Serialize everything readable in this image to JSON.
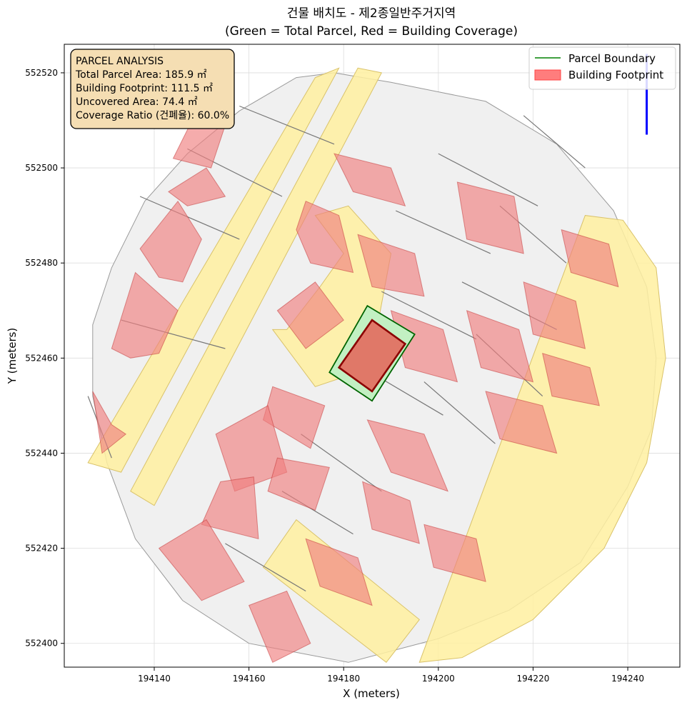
{
  "chart_data": {
    "type": "map",
    "title": "건물 배치도 - 제2종일반주거지역",
    "subtitle": "(Green = Total Parcel, Red = Building Coverage)",
    "xlabel": "X (meters)",
    "ylabel": "Y (meters)",
    "xlim": [
      194121,
      194251
    ],
    "ylim": [
      552395,
      552526
    ],
    "xticks": [
      194140,
      194160,
      194180,
      194200,
      194220,
      194240
    ],
    "yticks": [
      552400,
      552420,
      552440,
      552460,
      552480,
      552500,
      552520
    ],
    "grid": true,
    "legend_placement": "top-right",
    "legend": [
      {
        "label": "Parcel Boundary",
        "kind": "line",
        "color": "#008000"
      },
      {
        "label": "Building Footprint",
        "kind": "patch",
        "color": "#ff6666"
      }
    ],
    "annotation": {
      "title": "PARCEL ANALYSIS",
      "lines": [
        "Total Parcel Area: 185.9 ㎡",
        "Building Footprint: 111.5 ㎡",
        "Uncovered Area: 74.4 ㎡",
        "Coverage Ratio (건폐율): 60.0%"
      ]
    },
    "colors": {
      "area_fill": "#f0f0f0",
      "area_edge": "#9a9a9a",
      "road_fill": "#fff0a0",
      "road_edge": "#d9c26a",
      "building_fill": "#f08080",
      "building_edge": "#c03030",
      "target_parcel_fill": "#c2f0c2",
      "target_parcel_edge": "#006400",
      "target_building_fill": "#e07868",
      "target_building_edge": "#8b0000",
      "north_arrow": "#0000ff",
      "annotation_fill": "#f5deb3"
    },
    "study_area_outline": [
      [
        194170,
        552519
      ],
      [
        194178,
        552520
      ],
      [
        194190,
        552518
      ],
      [
        194210,
        552514
      ],
      [
        194225,
        552505
      ],
      [
        194237,
        552491
      ],
      [
        194244,
        552475
      ],
      [
        194246,
        552460
      ],
      [
        194245,
        552445
      ],
      [
        194240,
        552433
      ],
      [
        194230,
        552417
      ],
      [
        194215,
        552407
      ],
      [
        194200,
        552401
      ],
      [
        194181,
        552396
      ],
      [
        194160,
        552400
      ],
      [
        194146,
        552409
      ],
      [
        194136,
        552422
      ],
      [
        194130,
        552438
      ],
      [
        194127,
        552452
      ],
      [
        194127,
        552467
      ],
      [
        194131,
        552479
      ],
      [
        194138,
        552493
      ],
      [
        194147,
        552503
      ],
      [
        194158,
        552512
      ]
    ],
    "roads": [
      [
        [
          194174,
          552519
        ],
        [
          194179,
          552521
        ],
        [
          194133,
          552436
        ],
        [
          194126,
          552438
        ]
      ],
      [
        [
          194183,
          552521
        ],
        [
          194188,
          552520
        ],
        [
          194140,
          552429
        ],
        [
          194135,
          552432
        ]
      ],
      [
        [
          194165,
          552466
        ],
        [
          194174,
          552454
        ],
        [
          194180,
          552456
        ],
        [
          194187,
          552466
        ],
        [
          194190,
          552482
        ],
        [
          194181,
          552492
        ],
        [
          194174,
          552490
        ],
        [
          194180,
          552482
        ],
        [
          194175,
          552475
        ],
        [
          194168,
          552466
        ]
      ],
      [
        [
          194163,
          552416
        ],
        [
          194170,
          552426
        ],
        [
          194196,
          552405
        ],
        [
          194189,
          552396
        ]
      ],
      [
        [
          194196,
          552396
        ],
        [
          194231,
          552490
        ],
        [
          194239,
          552489
        ],
        [
          194246,
          552479
        ],
        [
          194248,
          552460
        ],
        [
          194244,
          552438
        ],
        [
          194235,
          552420
        ],
        [
          194220,
          552405
        ],
        [
          194205,
          552397
        ]
      ]
    ],
    "parcel_lines": [
      [
        [
          194131,
          552439
        ],
        [
          194126,
          552452
        ]
      ],
      [
        [
          194137,
          552494
        ],
        [
          194158,
          552485
        ]
      ],
      [
        [
          194147,
          552504
        ],
        [
          194167,
          552494
        ]
      ],
      [
        [
          194158,
          552513
        ],
        [
          194178,
          552505
        ]
      ],
      [
        [
          194133,
          552468
        ],
        [
          194155,
          552462
        ]
      ],
      [
        [
          194171,
          552444
        ],
        [
          194188,
          552432
        ]
      ],
      [
        [
          194184,
          552458
        ],
        [
          194201,
          552448
        ]
      ],
      [
        [
          194167,
          552432
        ],
        [
          194182,
          552423
        ]
      ],
      [
        [
          194155,
          552421
        ],
        [
          194172,
          552411
        ]
      ],
      [
        [
          194191,
          552491
        ],
        [
          194211,
          552482
        ]
      ],
      [
        [
          194188,
          552474
        ],
        [
          194208,
          552464
        ]
      ],
      [
        [
          194200,
          552503
        ],
        [
          194221,
          552492
        ]
      ],
      [
        [
          194205,
          552476
        ],
        [
          194225,
          552466
        ]
      ],
      [
        [
          194213,
          552492
        ],
        [
          194227,
          552480
        ]
      ],
      [
        [
          194218,
          552511
        ],
        [
          194231,
          552500
        ]
      ],
      [
        [
          194197,
          552455
        ],
        [
          194212,
          552442
        ]
      ],
      [
        [
          194208,
          552465
        ],
        [
          194222,
          552452
        ]
      ]
    ],
    "buildings": [
      [
        [
          194148,
          552510
        ],
        [
          194156,
          552512
        ],
        [
          194152,
          552500
        ],
        [
          194144,
          552502
        ]
      ],
      [
        [
          194143,
          552495
        ],
        [
          194151,
          552500
        ],
        [
          194155,
          552494
        ],
        [
          194147,
          552492
        ]
      ],
      [
        [
          194137,
          552483
        ],
        [
          194145,
          552493
        ],
        [
          194150,
          552485
        ],
        [
          194146,
          552476
        ],
        [
          194141,
          552477
        ]
      ],
      [
        [
          194131,
          552462
        ],
        [
          194136,
          552478
        ],
        [
          194145,
          552470
        ],
        [
          194141,
          552461
        ],
        [
          194135,
          552460
        ]
      ],
      [
        [
          194127,
          552453
        ],
        [
          194131,
          552446
        ],
        [
          194134,
          552444
        ],
        [
          194129,
          552440
        ]
      ],
      [
        [
          194172,
          552493
        ],
        [
          194179,
          552490
        ],
        [
          194182,
          552478
        ],
        [
          194173,
          552480
        ],
        [
          194170,
          552487
        ]
      ],
      [
        [
          194166,
          552470
        ],
        [
          194174,
          552476
        ],
        [
          194180,
          552468
        ],
        [
          194172,
          552462
        ]
      ],
      [
        [
          194165,
          552454
        ],
        [
          194176,
          552450
        ],
        [
          194173,
          552441
        ],
        [
          194163,
          552447
        ]
      ],
      [
        [
          194153,
          552444
        ],
        [
          194164,
          552450
        ],
        [
          194168,
          552436
        ],
        [
          194157,
          552432
        ]
      ],
      [
        [
          194166,
          552439
        ],
        [
          194177,
          552437
        ],
        [
          194174,
          552428
        ],
        [
          194164,
          552432
        ]
      ],
      [
        [
          194154,
          552434
        ],
        [
          194161,
          552435
        ],
        [
          194162,
          552422
        ],
        [
          194150,
          552425
        ]
      ],
      [
        [
          194141,
          552420
        ],
        [
          194151,
          552426
        ],
        [
          194159,
          552413
        ],
        [
          194150,
          552409
        ]
      ],
      [
        [
          194160,
          552408
        ],
        [
          194168,
          552411
        ],
        [
          194173,
          552400
        ],
        [
          194165,
          552396
        ]
      ],
      [
        [
          194178,
          552503
        ],
        [
          194190,
          552500
        ],
        [
          194193,
          552492
        ],
        [
          194182,
          552495
        ]
      ],
      [
        [
          194183,
          552486
        ],
        [
          194195,
          552482
        ],
        [
          194197,
          552473
        ],
        [
          194186,
          552475
        ]
      ],
      [
        [
          194190,
          552470
        ],
        [
          194201,
          552466
        ],
        [
          194204,
          552455
        ],
        [
          194193,
          552458
        ]
      ],
      [
        [
          194185,
          552447
        ],
        [
          194197,
          552444
        ],
        [
          194202,
          552432
        ],
        [
          194190,
          552436
        ]
      ],
      [
        [
          194184,
          552434
        ],
        [
          194194,
          552430
        ],
        [
          194196,
          552421
        ],
        [
          194186,
          552424
        ]
      ],
      [
        [
          194172,
          552422
        ],
        [
          194183,
          552418
        ],
        [
          194186,
          552408
        ],
        [
          194175,
          552412
        ]
      ],
      [
        [
          194204,
          552497
        ],
        [
          194216,
          552494
        ],
        [
          194218,
          552482
        ],
        [
          194206,
          552485
        ]
      ],
      [
        [
          194206,
          552470
        ],
        [
          194217,
          552466
        ],
        [
          194220,
          552455
        ],
        [
          194209,
          552458
        ]
      ],
      [
        [
          194218,
          552476
        ],
        [
          194229,
          552472
        ],
        [
          194231,
          552462
        ],
        [
          194220,
          552465
        ]
      ],
      [
        [
          194210,
          552453
        ],
        [
          194222,
          552450
        ],
        [
          194225,
          552440
        ],
        [
          194213,
          552443
        ]
      ],
      [
        [
          194226,
          552487
        ],
        [
          194236,
          552484
        ],
        [
          194238,
          552475
        ],
        [
          194228,
          552478
        ]
      ],
      [
        [
          194222,
          552461
        ],
        [
          194232,
          552458
        ],
        [
          194234,
          552450
        ],
        [
          194224,
          552452
        ]
      ],
      [
        [
          194197,
          552425
        ],
        [
          194208,
          552422
        ],
        [
          194210,
          552413
        ],
        [
          194199,
          552416
        ]
      ]
    ],
    "target_parcel": [
      [
        194177,
        552457
      ],
      [
        194185,
        552471
      ],
      [
        194195,
        552465
      ],
      [
        194186,
        552451
      ]
    ],
    "target_building": [
      [
        194179,
        552458
      ],
      [
        194186,
        552468
      ],
      [
        194193,
        552463
      ],
      [
        194186,
        552453
      ]
    ],
    "north_arrow": {
      "x": 194244,
      "y_start": 552507,
      "y_end": 552524
    }
  }
}
